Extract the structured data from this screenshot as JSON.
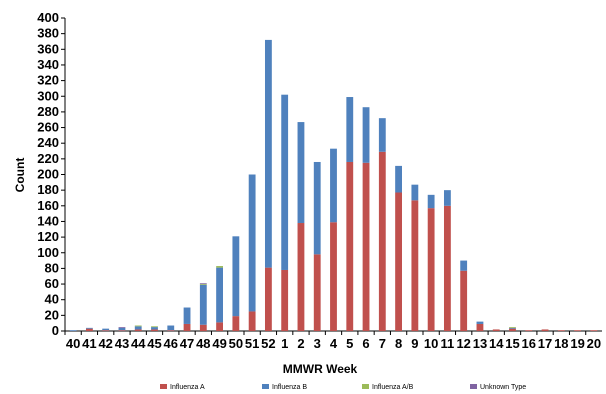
{
  "chart_data": {
    "type": "bar",
    "stacked": true,
    "title": "",
    "xlabel": "MMWR Week",
    "ylabel": "Count",
    "ylim": [
      0,
      400
    ],
    "ytick_step": 20,
    "grid": false,
    "legend_position": "bottom",
    "categories": [
      "40",
      "41",
      "42",
      "43",
      "44",
      "45",
      "46",
      "47",
      "48",
      "49",
      "50",
      "51",
      "52",
      "1",
      "2",
      "3",
      "4",
      "5",
      "6",
      "7",
      "8",
      "9",
      "10",
      "11",
      "12",
      "13",
      "14",
      "15",
      "16",
      "17",
      "18",
      "19",
      "20"
    ],
    "series": [
      {
        "name": "Influenza A",
        "color": "#c0504d",
        "values": [
          0,
          3,
          1,
          1,
          2,
          2,
          1,
          9,
          8,
          11,
          19,
          25,
          81,
          78,
          138,
          98,
          139,
          216,
          215,
          229,
          177,
          167,
          157,
          160,
          77,
          9,
          2,
          3,
          1,
          2,
          1,
          1,
          1
        ]
      },
      {
        "name": "Influenza B",
        "color": "#4f81bd",
        "values": [
          1,
          1,
          2,
          3,
          4,
          3,
          6,
          21,
          51,
          70,
          102,
          175,
          291,
          224,
          129,
          118,
          94,
          83,
          71,
          43,
          34,
          20,
          17,
          20,
          13,
          3,
          0,
          1,
          0,
          0,
          0,
          0,
          0
        ]
      },
      {
        "name": "Influenza A/B",
        "color": "#9bbb59",
        "values": [
          0,
          0,
          0,
          0,
          1,
          1,
          0,
          0,
          1,
          2,
          0,
          0,
          0,
          0,
          0,
          0,
          0,
          0,
          0,
          0,
          0,
          0,
          0,
          0,
          0,
          0,
          0,
          1,
          0,
          0,
          0,
          0,
          0
        ]
      },
      {
        "name": "Unknown Type",
        "color": "#8064a2",
        "values": [
          0,
          0,
          0,
          1,
          0,
          0,
          0,
          0,
          1,
          0,
          0,
          0,
          0,
          0,
          0,
          0,
          0,
          0,
          0,
          0,
          0,
          0,
          0,
          0,
          0,
          0,
          0,
          0,
          0,
          0,
          0,
          0,
          0
        ]
      }
    ]
  }
}
